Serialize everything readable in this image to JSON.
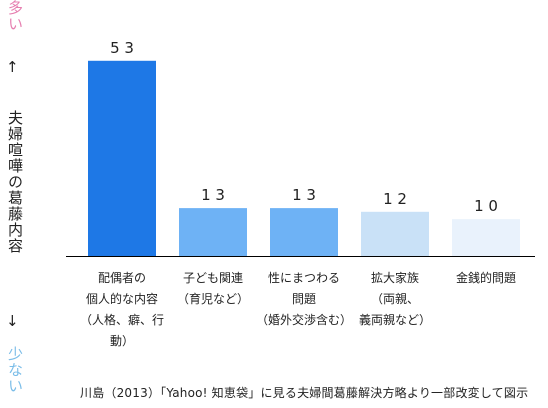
{
  "more_label": "多い",
  "less_label": "少ない",
  "up_arrow": "↑",
  "down_arrow": "↓",
  "axis_title": "夫婦喧嘩の葛藤内容",
  "source": "川島（2013）「Yahoo! 知恵袋」に見る夫婦間葛藤解決方略より一部改変して図示",
  "chart_data": {
    "type": "bar",
    "title": "",
    "xlabel": "",
    "ylabel": "夫婦喧嘩の葛藤内容",
    "categories": [
      [
        "配偶者の",
        "個人的な内容",
        "（人格、癖、行動）"
      ],
      [
        "子ども関連",
        "（育児など）"
      ],
      [
        "性にまつわる",
        "問題",
        "（婚外交渉含む）"
      ],
      [
        "拡大家族",
        "（両親、",
        "義両親など）"
      ],
      [
        "金銭的問題"
      ]
    ],
    "values": [
      53,
      13,
      13,
      12,
      10
    ],
    "value_labels": [
      "5 3",
      "1 3",
      "1 3",
      "1 2",
      "1 0"
    ],
    "colors": [
      "#1e78e6",
      "#6eb2f5",
      "#6eb2f5",
      "#c9e1f7",
      "#e9f2fc"
    ],
    "ylim": [
      0,
      60
    ],
    "grid": false,
    "legend": "none"
  }
}
